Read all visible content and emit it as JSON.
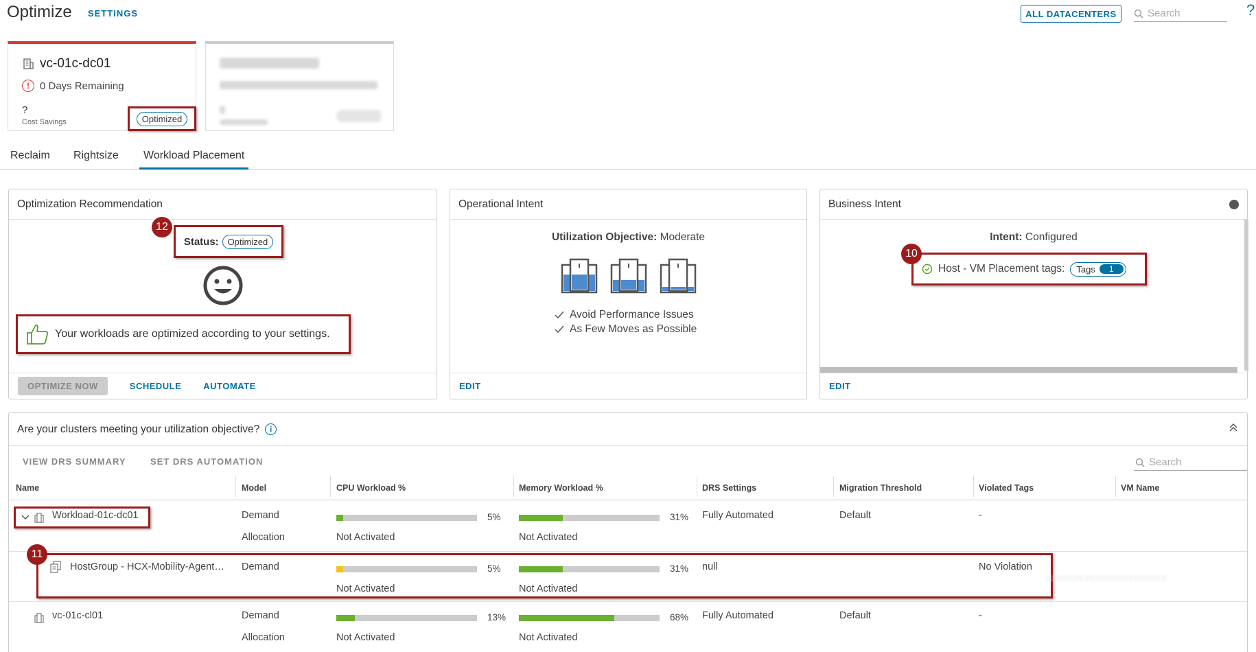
{
  "header": {
    "title": "Optimize",
    "settings_label": "SETTINGS",
    "all_datacenters_label": "ALL DATACENTERS",
    "search_placeholder": "Search",
    "help": "?"
  },
  "dc_cards": [
    {
      "name": "vc-01c-dc01",
      "days_remaining": "0 Days Remaining",
      "cost_savings_value": "?",
      "cost_savings_label": "Cost Savings",
      "status": "Optimized"
    }
  ],
  "tabs": [
    {
      "label": "Reclaim"
    },
    {
      "label": "Rightsize"
    },
    {
      "label": "Workload Placement"
    }
  ],
  "optimization": {
    "title": "Optimization Recommendation",
    "status_label": "Status:",
    "status_value": "Optimized",
    "message": "Your workloads are optimized according to your settings.",
    "optimize_now": "OPTIMIZE NOW",
    "schedule": "SCHEDULE",
    "automate": "AUTOMATE"
  },
  "operational": {
    "title": "Operational Intent",
    "objective_label": "Utilization Objective:",
    "objective_value": "Moderate",
    "checks": [
      "Avoid Performance Issues",
      "As Few Moves as Possible"
    ],
    "edit": "EDIT"
  },
  "business": {
    "title": "Business Intent",
    "intent_label": "Intent:",
    "intent_value": "Configured",
    "tags_label": "Host - VM Placement tags:",
    "tags_pill": "Tags",
    "tags_count": "1",
    "edit": "EDIT"
  },
  "callouts": {
    "n10": "10",
    "n11": "11",
    "n12": "12"
  },
  "clusters": {
    "title": "Are your clusters meeting your utilization objective?",
    "view_drs": "VIEW DRS SUMMARY",
    "set_drs": "SET DRS AUTOMATION",
    "search_placeholder": "Search",
    "columns": [
      "Name",
      "Model",
      "CPU Workload %",
      "Memory Workload %",
      "DRS Settings",
      "Migration Threshold",
      "Violated Tags",
      "VM Name"
    ],
    "rows": [
      {
        "name": "Workload-01c-dc01",
        "model1": "Demand",
        "model2": "Allocation",
        "cpu_pct": "5%",
        "cpu_fill": 0.05,
        "cpu_alloc": "Not Activated",
        "mem_pct": "31%",
        "mem_fill": 0.31,
        "mem_alloc": "Not Activated",
        "drs": "Fully Automated",
        "threshold": "Default",
        "violated": "-"
      },
      {
        "name": "HostGroup - HCX-Mobility-Agent…",
        "model1": "Demand",
        "cpu_pct": "5%",
        "cpu_fill": 0.05,
        "cpu_alloc": "Not Activated",
        "mem_pct": "31%",
        "mem_fill": 0.31,
        "mem_alloc": "Not Activated",
        "drs": "null",
        "violated": "No Violation"
      },
      {
        "name": "vc-01c-cl01",
        "model1": "Demand",
        "model2": "Allocation",
        "cpu_pct": "13%",
        "cpu_fill": 0.13,
        "cpu_alloc": "Not Activated",
        "mem_pct": "68%",
        "mem_fill": 0.68,
        "mem_alloc": "Not Activated",
        "drs": "Fully Automated",
        "threshold": "Default",
        "violated": "-"
      }
    ]
  },
  "colors": {
    "accent": "#0072a3",
    "callout": "#9e1b1b",
    "bar_green": "#6ab130",
    "bar_yellow": "#f7c31c",
    "bar_track": "#cccccc"
  }
}
